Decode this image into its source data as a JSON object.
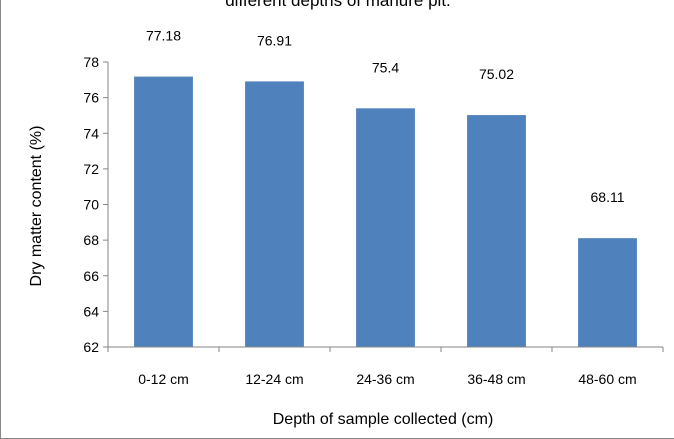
{
  "chart_data": {
    "type": "bar",
    "title": "different depths of manure pit.",
    "xlabel": "Depth of sample collected (cm)",
    "ylabel": "Dry matter content  (%)",
    "categories": [
      "0-12 cm",
      "12-24 cm",
      "24-36 cm",
      "36-48 cm",
      "48-60 cm"
    ],
    "values": [
      77.18,
      76.91,
      75.4,
      75.02,
      68.11
    ],
    "data_labels": [
      "77.18",
      "76.91",
      "75.4",
      "75.02",
      "68.11"
    ],
    "ylim": [
      62,
      78
    ],
    "yticks": [
      62,
      64,
      66,
      68,
      70,
      72,
      74,
      76,
      78
    ],
    "bar_color": "#4F81BD",
    "grid": false,
    "legend": "none"
  }
}
